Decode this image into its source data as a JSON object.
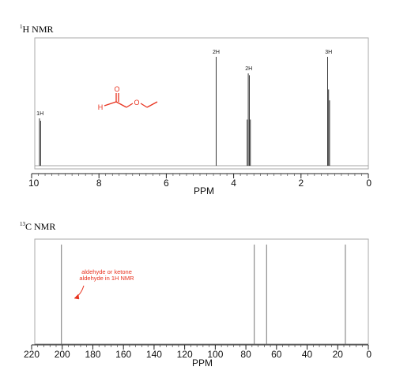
{
  "sections": {
    "h_nmr": {
      "sup": "1",
      "label": "H NMR"
    },
    "c_nmr": {
      "sup": "13",
      "label": "C NMR"
    }
  },
  "chart_data": [
    {
      "type": "line",
      "title": "1H NMR",
      "xlabel": "PPM",
      "xlim": [
        10,
        0
      ],
      "xticks": [
        "10",
        "8",
        "6",
        "4",
        "2",
        "0"
      ],
      "minor_ticks_step": 0.2,
      "grid": false,
      "peaks": [
        {
          "ppm": 9.75,
          "height": 0.4,
          "label": "1H",
          "multiplet": "singlet-split"
        },
        {
          "ppm": 4.52,
          "height": 0.92,
          "label": "2H",
          "multiplet": "singlet"
        },
        {
          "ppm": 3.55,
          "height": 0.78,
          "label": "2H",
          "multiplet": "quartet"
        },
        {
          "ppm": 1.18,
          "height": 0.92,
          "label": "3H",
          "multiplet": "triplet"
        }
      ],
      "structure": {
        "color": "#e8321e",
        "atoms": [
          "H",
          "O",
          "O"
        ]
      }
    },
    {
      "type": "line",
      "title": "13C NMR",
      "xlabel": "PPM",
      "xlim": [
        220,
        0
      ],
      "xticks": [
        "220",
        "200",
        "180",
        "160",
        "140",
        "120",
        "100",
        "80",
        "60",
        "40",
        "20",
        "0"
      ],
      "minor_ticks_step": 4,
      "grid": false,
      "peaks": [
        {
          "ppm": 200.5,
          "height": 0.97
        },
        {
          "ppm": 74.5,
          "height": 0.97
        },
        {
          "ppm": 66.5,
          "height": 0.97
        },
        {
          "ppm": 15,
          "height": 0.97
        }
      ],
      "annotation": {
        "lines": [
          "aldehyde or ketone",
          "aldehyde in 1H NMR"
        ],
        "color": "#e8321e"
      }
    }
  ]
}
